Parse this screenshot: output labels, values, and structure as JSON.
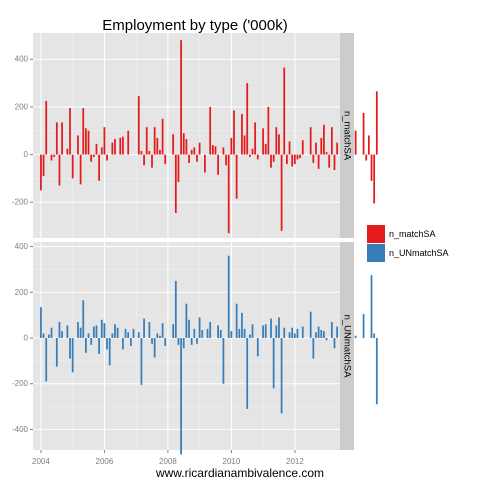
{
  "chart_data": {
    "type": "bar",
    "title": "Employment by type ('000k)",
    "xlabel": "www.ricardianambivalence.com",
    "ylabel": "",
    "x_ticks": [
      "2004",
      "2006",
      "2008",
      "2010",
      "2012"
    ],
    "x_tick_years": [
      2004,
      2006,
      2008,
      2010,
      2012
    ],
    "xlim": [
      2003.75,
      2013.42
    ],
    "bar_width_years": 0.055,
    "grid": true,
    "legend_position": "right",
    "panels": [
      {
        "strip_label": "n_matchSA",
        "series_name": "n_matchSA",
        "color": "#e41a1c",
        "ylim": [
          -350,
          510
        ],
        "y_ticks": [
          400,
          200,
          0,
          -200
        ],
        "y_tick_labels": [
          "400",
          "200",
          "0",
          "-200"
        ],
        "start_year": 2004.0,
        "step_years": 0.0833,
        "values": [
          -150,
          -90,
          225,
          0,
          -25,
          -10,
          135,
          -130,
          135,
          0,
          25,
          195,
          -100,
          0,
          80,
          -125,
          195,
          110,
          100,
          -30,
          -10,
          45,
          -110,
          30,
          115,
          -25,
          0,
          50,
          65,
          0,
          70,
          75,
          0,
          100,
          0,
          0,
          0,
          245,
          15,
          -45,
          115,
          15,
          -55,
          115,
          70,
          20,
          150,
          -40,
          0,
          0,
          85,
          -245,
          -115,
          480,
          90,
          65,
          -35,
          20,
          30,
          -30,
          50,
          0,
          -75,
          0,
          200,
          40,
          35,
          -85,
          0,
          30,
          -45,
          -330,
          70,
          185,
          -185,
          0,
          170,
          80,
          300,
          -10,
          25,
          135,
          -20,
          0,
          110,
          45,
          200,
          -55,
          -30,
          115,
          85,
          -320,
          365,
          -40,
          55,
          -50,
          -40,
          -20,
          -15,
          60,
          0,
          0,
          115,
          -35,
          50,
          -60,
          70,
          125,
          10,
          -55,
          115,
          -65,
          50,
          0,
          90,
          -75,
          -85,
          40,
          -10,
          100,
          0,
          0,
          175,
          -25,
          80,
          -110,
          -205,
          265
        ]
      },
      {
        "strip_label": "n_UNmatchSA",
        "series_name": "n_UNmatchSA",
        "color": "#377eb8",
        "ylim": [
          -490,
          420
        ],
        "y_ticks": [
          400,
          200,
          0,
          -200,
          -400
        ],
        "y_tick_labels": [
          "400",
          "200",
          "0",
          "-200",
          "-400"
        ],
        "start_year": 2004.0,
        "step_years": 0.0833,
        "values": [
          135,
          20,
          -190,
          15,
          45,
          0,
          -125,
          70,
          30,
          0,
          55,
          -90,
          -150,
          0,
          70,
          45,
          165,
          -65,
          20,
          -30,
          50,
          55,
          -70,
          80,
          65,
          -50,
          -120,
          20,
          60,
          45,
          0,
          -50,
          40,
          25,
          -35,
          40,
          0,
          25,
          -205,
          85,
          0,
          70,
          -25,
          -85,
          20,
          10,
          65,
          -35,
          0,
          0,
          60,
          250,
          -30,
          -510,
          -45,
          150,
          80,
          -30,
          40,
          -25,
          90,
          35,
          0,
          40,
          70,
          0,
          0,
          55,
          35,
          -200,
          0,
          360,
          30,
          0,
          150,
          40,
          110,
          40,
          -310,
          15,
          60,
          0,
          -80,
          0,
          55,
          60,
          0,
          85,
          -220,
          55,
          90,
          -330,
          45,
          0,
          25,
          45,
          20,
          40,
          0,
          50,
          0,
          0,
          115,
          -90,
          25,
          50,
          35,
          30,
          -10,
          0,
          70,
          -45,
          50,
          0,
          15,
          80,
          -110,
          60,
          0,
          10,
          0,
          0,
          105,
          0,
          0,
          275,
          20,
          -290
        ]
      }
    ]
  }
}
